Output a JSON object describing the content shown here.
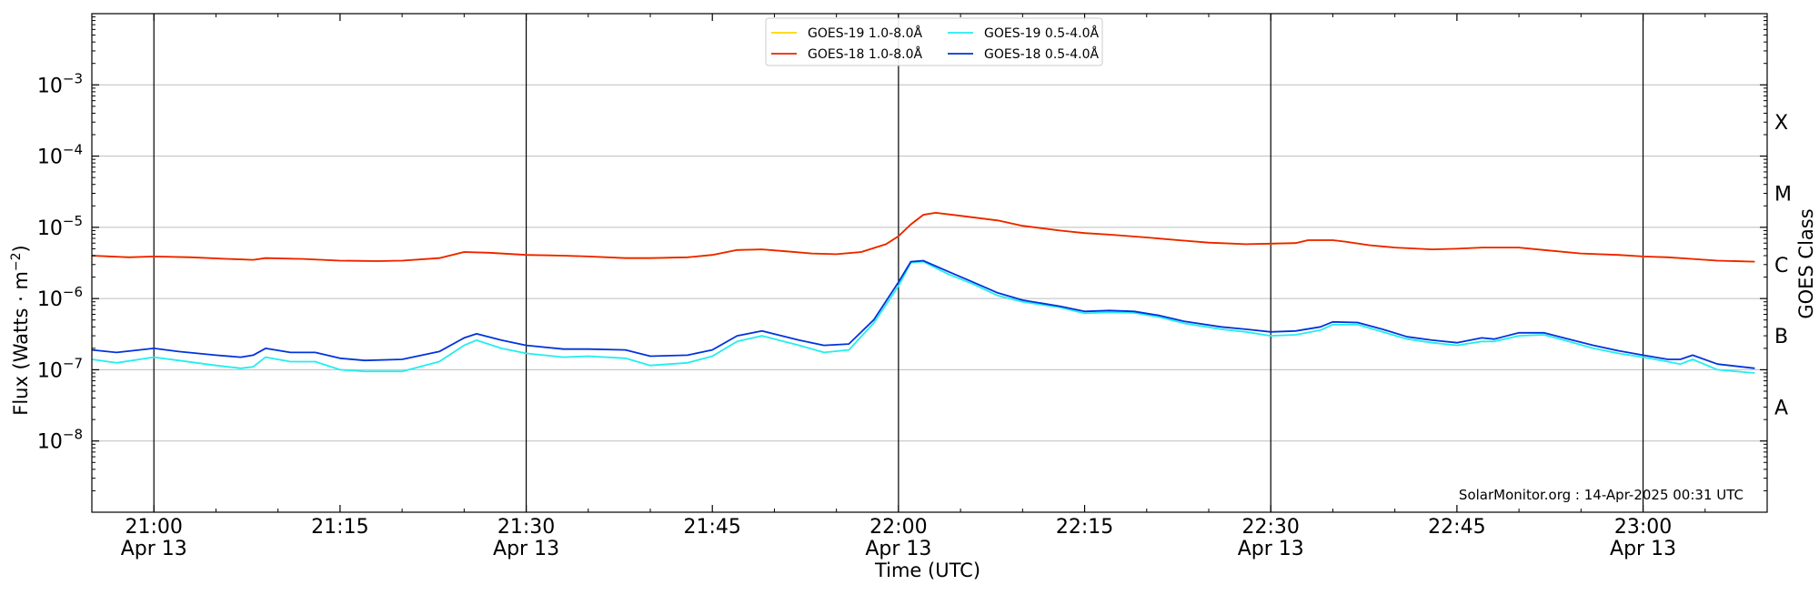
{
  "chart_data": {
    "type": "line",
    "xlabel": "Time (UTC)",
    "ylabel_main": "Flux (Watts · m",
    "ylabel_sup": "−2",
    "ylabel_close": ")",
    "right_label": "GOES Class",
    "footer": "SolarMonitor.org : 14-Apr-2025 00:31 UTC",
    "yscale": "log",
    "ylim": [
      1e-09,
      0.01
    ],
    "xlim": [
      "20:55",
      "23:10"
    ],
    "x_ticks": [
      {
        "time": "21:00",
        "label": "21:00",
        "date": "Apr 13"
      },
      {
        "time": "21:15",
        "label": "21:15",
        "date": ""
      },
      {
        "time": "21:30",
        "label": "21:30",
        "date": "Apr 13"
      },
      {
        "time": "21:45",
        "label": "21:45",
        "date": ""
      },
      {
        "time": "22:00",
        "label": "22:00",
        "date": "Apr 13"
      },
      {
        "time": "22:15",
        "label": "22:15",
        "date": ""
      },
      {
        "time": "22:30",
        "label": "22:30",
        "date": "Apr 13"
      },
      {
        "time": "22:45",
        "label": "22:45",
        "date": ""
      },
      {
        "time": "23:00",
        "label": "23:00",
        "date": "Apr 13"
      }
    ],
    "vertical_lines": [
      "21:00",
      "21:30",
      "22:00",
      "22:30",
      "23:00"
    ],
    "y_ticks": [
      {
        "value": 1e-08,
        "base": "10",
        "exp": "−8"
      },
      {
        "value": 1e-07,
        "base": "10",
        "exp": "−7"
      },
      {
        "value": 1e-06,
        "base": "10",
        "exp": "−6"
      },
      {
        "value": 1e-05,
        "base": "10",
        "exp": "−5"
      },
      {
        "value": 0.0001,
        "base": "10",
        "exp": "−4"
      },
      {
        "value": 0.001,
        "base": "10",
        "exp": "−3"
      }
    ],
    "grid_y": true,
    "class_labels": [
      {
        "label": "A",
        "value": 3e-08
      },
      {
        "label": "B",
        "value": 3e-07
      },
      {
        "label": "C",
        "value": 3e-06
      },
      {
        "label": "M",
        "value": 3e-05
      },
      {
        "label": "X",
        "value": 0.0003
      }
    ],
    "legend_position": "top-center",
    "series": [
      {
        "name": "GOES-19 1.0-8.0Å",
        "color": "#ffd700",
        "hidden_under": "GOES-18 1.0-8.0Å",
        "x": [
          "20:55",
          "20:58",
          "21:00",
          "21:03",
          "21:06",
          "21:08",
          "21:09",
          "21:12",
          "21:15",
          "21:18",
          "21:20",
          "21:23",
          "21:25",
          "21:27",
          "21:30",
          "21:33",
          "21:35",
          "21:38",
          "21:40",
          "21:43",
          "21:45",
          "21:47",
          "21:49",
          "21:51",
          "21:53",
          "21:55",
          "21:57",
          "21:59",
          "22:00",
          "22:01",
          "22:02",
          "22:03",
          "22:05",
          "22:08",
          "22:10",
          "22:13",
          "22:15",
          "22:17",
          "22:20",
          "22:23",
          "22:25",
          "22:28",
          "22:30",
          "22:32",
          "22:33",
          "22:35",
          "22:36",
          "22:38",
          "22:40",
          "22:43",
          "22:45",
          "22:47",
          "22:50",
          "22:52",
          "22:55",
          "22:58",
          "23:00",
          "23:02",
          "23:04",
          "23:06",
          "23:09"
        ],
        "values": [
          4e-06,
          3.8e-06,
          3.9e-06,
          3.8e-06,
          3.6e-06,
          3.5e-06,
          3.7e-06,
          3.6e-06,
          3.4e-06,
          3.35e-06,
          3.4e-06,
          3.7e-06,
          4.5e-06,
          4.4e-06,
          4.1e-06,
          4e-06,
          3.9e-06,
          3.7e-06,
          3.7e-06,
          3.8e-06,
          4.1e-06,
          4.8e-06,
          4.9e-06,
          4.6e-06,
          4.3e-06,
          4.2e-06,
          4.5e-06,
          5.8e-06,
          7.5e-06,
          1.1e-05,
          1.5e-05,
          1.6e-05,
          1.45e-05,
          1.25e-05,
          1.05e-05,
          9e-06,
          8.3e-06,
          7.9e-06,
          7.2e-06,
          6.5e-06,
          6.1e-06,
          5.8e-06,
          5.9e-06,
          6e-06,
          6.6e-06,
          6.6e-06,
          6.3e-06,
          5.6e-06,
          5.2e-06,
          4.9e-06,
          5e-06,
          5.2e-06,
          5.2e-06,
          4.8e-06,
          4.3e-06,
          4.1e-06,
          3.9e-06,
          3.8e-06,
          3.6e-06,
          3.4e-06,
          3.3e-06
        ]
      },
      {
        "name": "GOES-18 1.0-8.0Å",
        "color": "#ee2200",
        "x": [
          "20:55",
          "20:58",
          "21:00",
          "21:03",
          "21:06",
          "21:08",
          "21:09",
          "21:12",
          "21:15",
          "21:18",
          "21:20",
          "21:23",
          "21:25",
          "21:27",
          "21:30",
          "21:33",
          "21:35",
          "21:38",
          "21:40",
          "21:43",
          "21:45",
          "21:47",
          "21:49",
          "21:51",
          "21:53",
          "21:55",
          "21:57",
          "21:59",
          "22:00",
          "22:01",
          "22:02",
          "22:03",
          "22:05",
          "22:08",
          "22:10",
          "22:13",
          "22:15",
          "22:17",
          "22:20",
          "22:23",
          "22:25",
          "22:28",
          "22:30",
          "22:32",
          "22:33",
          "22:35",
          "22:36",
          "22:38",
          "22:40",
          "22:43",
          "22:45",
          "22:47",
          "22:50",
          "22:52",
          "22:55",
          "22:58",
          "23:00",
          "23:02",
          "23:04",
          "23:06",
          "23:09"
        ],
        "values": [
          4e-06,
          3.8e-06,
          3.9e-06,
          3.8e-06,
          3.6e-06,
          3.5e-06,
          3.7e-06,
          3.6e-06,
          3.4e-06,
          3.35e-06,
          3.4e-06,
          3.7e-06,
          4.5e-06,
          4.4e-06,
          4.1e-06,
          4e-06,
          3.9e-06,
          3.7e-06,
          3.7e-06,
          3.8e-06,
          4.1e-06,
          4.8e-06,
          4.9e-06,
          4.6e-06,
          4.3e-06,
          4.2e-06,
          4.5e-06,
          5.8e-06,
          7.5e-06,
          1.1e-05,
          1.5e-05,
          1.6e-05,
          1.45e-05,
          1.25e-05,
          1.05e-05,
          9e-06,
          8.3e-06,
          7.9e-06,
          7.2e-06,
          6.5e-06,
          6.1e-06,
          5.8e-06,
          5.9e-06,
          6e-06,
          6.6e-06,
          6.6e-06,
          6.3e-06,
          5.6e-06,
          5.2e-06,
          4.9e-06,
          5e-06,
          5.2e-06,
          5.2e-06,
          4.8e-06,
          4.3e-06,
          4.1e-06,
          3.9e-06,
          3.8e-06,
          3.6e-06,
          3.4e-06,
          3.3e-06
        ]
      },
      {
        "name": "GOES-19 0.5-4.0Å",
        "color": "#22eeee",
        "x": [
          "20:55",
          "20:57",
          "21:00",
          "21:02",
          "21:05",
          "21:07",
          "21:08",
          "21:09",
          "21:11",
          "21:13",
          "21:15",
          "21:17",
          "21:20",
          "21:23",
          "21:25",
          "21:26",
          "21:28",
          "21:30",
          "21:33",
          "21:35",
          "21:38",
          "21:40",
          "21:43",
          "21:45",
          "21:47",
          "21:49",
          "21:52",
          "21:54",
          "21:56",
          "21:58",
          "22:00",
          "22:01",
          "22:02",
          "22:04",
          "22:06",
          "22:08",
          "22:10",
          "22:13",
          "22:15",
          "22:17",
          "22:19",
          "22:21",
          "22:23",
          "22:26",
          "22:28",
          "22:30",
          "22:32",
          "22:34",
          "22:35",
          "22:37",
          "22:39",
          "22:41",
          "22:43",
          "22:45",
          "22:47",
          "22:48",
          "22:50",
          "22:52",
          "22:54",
          "22:56",
          "22:58",
          "23:00",
          "23:02",
          "23:03",
          "23:04",
          "23:06",
          "23:09"
        ],
        "values": [
          1.4e-07,
          1.25e-07,
          1.5e-07,
          1.35e-07,
          1.15e-07,
          1.05e-07,
          1.1e-07,
          1.5e-07,
          1.3e-07,
          1.3e-07,
          1e-07,
          9.5e-08,
          9.5e-08,
          1.3e-07,
          2.2e-07,
          2.6e-07,
          2e-07,
          1.7e-07,
          1.5e-07,
          1.55e-07,
          1.45e-07,
          1.15e-07,
          1.25e-07,
          1.55e-07,
          2.5e-07,
          3e-07,
          2.2e-07,
          1.75e-07,
          1.9e-07,
          4.5e-07,
          1.5e-06,
          3.2e-06,
          3.3e-06,
          2.2e-06,
          1.6e-06,
          1.1e-06,
          9e-07,
          7.5e-07,
          6.2e-07,
          6.4e-07,
          6.3e-07,
          5.5e-07,
          4.5e-07,
          3.7e-07,
          3.4e-07,
          3e-07,
          3.1e-07,
          3.6e-07,
          4.3e-07,
          4.3e-07,
          3.4e-07,
          2.7e-07,
          2.4e-07,
          2.2e-07,
          2.5e-07,
          2.5e-07,
          3e-07,
          3.1e-07,
          2.5e-07,
          2e-07,
          1.7e-07,
          1.5e-07,
          1.3e-07,
          1.2e-07,
          1.4e-07,
          1e-07,
          9e-08
        ]
      },
      {
        "name": "GOES-18 0.5-4.0Å",
        "color": "#0033dd",
        "x": [
          "20:55",
          "20:57",
          "21:00",
          "21:02",
          "21:05",
          "21:07",
          "21:08",
          "21:09",
          "21:11",
          "21:13",
          "21:15",
          "21:17",
          "21:20",
          "21:23",
          "21:25",
          "21:26",
          "21:28",
          "21:30",
          "21:33",
          "21:35",
          "21:38",
          "21:40",
          "21:43",
          "21:45",
          "21:47",
          "21:49",
          "21:52",
          "21:54",
          "21:56",
          "21:58",
          "22:00",
          "22:01",
          "22:02",
          "22:04",
          "22:06",
          "22:08",
          "22:10",
          "22:13",
          "22:15",
          "22:17",
          "22:19",
          "22:21",
          "22:23",
          "22:26",
          "22:28",
          "22:30",
          "22:32",
          "22:34",
          "22:35",
          "22:37",
          "22:39",
          "22:41",
          "22:43",
          "22:45",
          "22:47",
          "22:48",
          "22:50",
          "22:52",
          "22:54",
          "22:56",
          "22:58",
          "23:00",
          "23:02",
          "23:03",
          "23:04",
          "23:06",
          "23:09"
        ],
        "values": [
          1.9e-07,
          1.75e-07,
          2e-07,
          1.8e-07,
          1.6e-07,
          1.5e-07,
          1.6e-07,
          2e-07,
          1.75e-07,
          1.75e-07,
          1.45e-07,
          1.35e-07,
          1.4e-07,
          1.8e-07,
          2.8e-07,
          3.2e-07,
          2.6e-07,
          2.2e-07,
          1.95e-07,
          1.95e-07,
          1.9e-07,
          1.55e-07,
          1.6e-07,
          1.9e-07,
          3e-07,
          3.5e-07,
          2.6e-07,
          2.2e-07,
          2.3e-07,
          5e-07,
          1.7e-06,
          3.3e-06,
          3.4e-06,
          2.4e-06,
          1.7e-06,
          1.2e-06,
          9.5e-07,
          7.8e-07,
          6.6e-07,
          6.8e-07,
          6.6e-07,
          5.8e-07,
          4.8e-07,
          4e-07,
          3.7e-07,
          3.4e-07,
          3.5e-07,
          4e-07,
          4.7e-07,
          4.6e-07,
          3.7e-07,
          2.9e-07,
          2.6e-07,
          2.4e-07,
          2.8e-07,
          2.7e-07,
          3.3e-07,
          3.3e-07,
          2.7e-07,
          2.2e-07,
          1.85e-07,
          1.6e-07,
          1.4e-07,
          1.4e-07,
          1.6e-07,
          1.2e-07,
          1.05e-07
        ]
      }
    ]
  }
}
